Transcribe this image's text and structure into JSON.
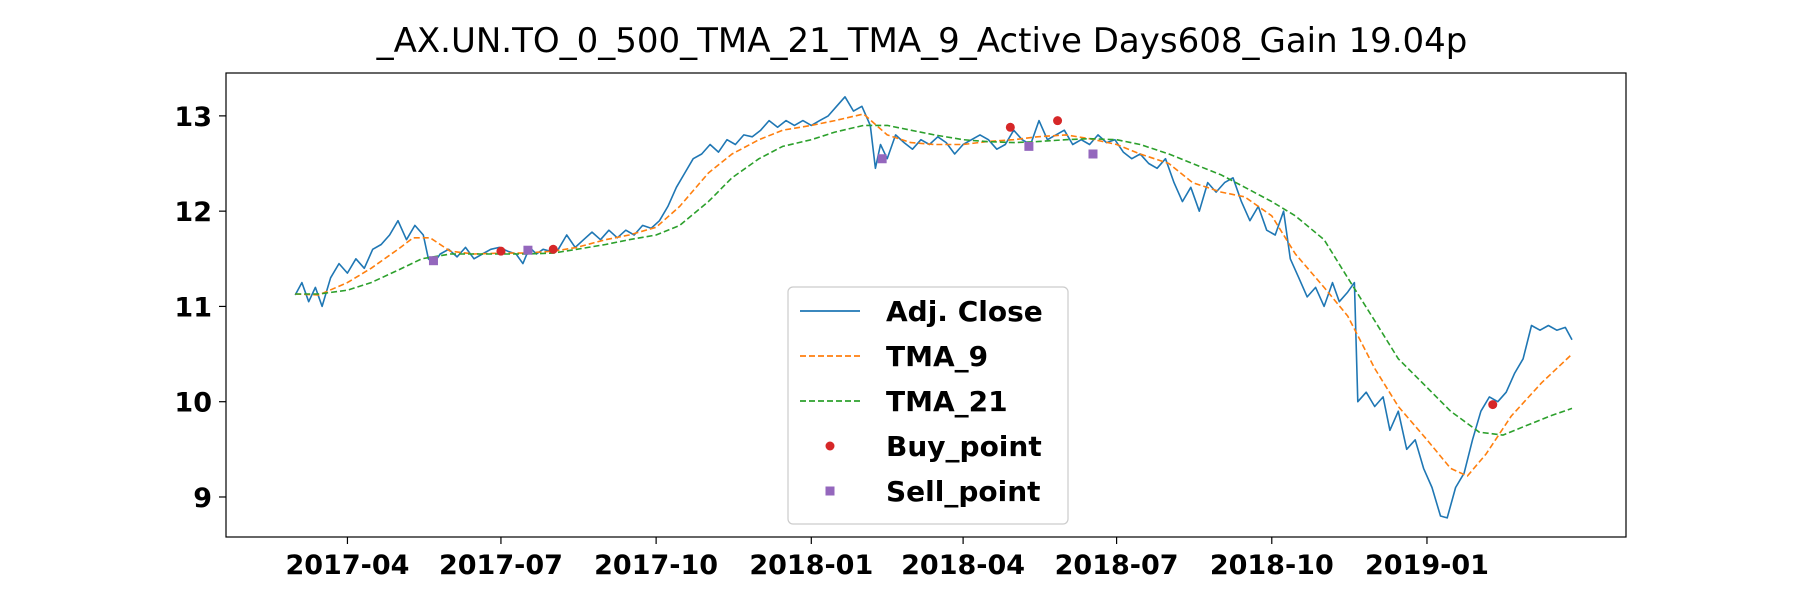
{
  "chart_data": {
    "type": "line",
    "title": "_AX.UN.TO_0_500_TMA_21_TMA_9_Active Days608_Gain  19.04p",
    "xlabel": "",
    "ylabel": "",
    "xlim": [
      "2017-01-19",
      "2019-04-29"
    ],
    "ylim": [
      8.58,
      13.45
    ],
    "x_ticks": [
      "2017-04",
      "2017-07",
      "2017-10",
      "2018-01",
      "2018-04",
      "2018-07",
      "2018-10",
      "2019-01"
    ],
    "y_ticks": [
      9,
      10,
      11,
      12,
      13
    ],
    "grid": false,
    "legend_position": "lower-center",
    "colors": {
      "adj_close": "#1f77b4",
      "tma_9": "#ff7f0e",
      "tma_21": "#2ca02c",
      "buy": "#d62728",
      "sell": "#9467bd"
    },
    "series": [
      {
        "name": "Adj. Close",
        "style": "solid",
        "points": [
          [
            "2017-03-01",
            11.12
          ],
          [
            "2017-03-05",
            11.25
          ],
          [
            "2017-03-09",
            11.05
          ],
          [
            "2017-03-13",
            11.2
          ],
          [
            "2017-03-17",
            11.0
          ],
          [
            "2017-03-22",
            11.3
          ],
          [
            "2017-03-27",
            11.45
          ],
          [
            "2017-04-01",
            11.35
          ],
          [
            "2017-04-06",
            11.5
          ],
          [
            "2017-04-11",
            11.4
          ],
          [
            "2017-04-16",
            11.6
          ],
          [
            "2017-04-21",
            11.65
          ],
          [
            "2017-04-26",
            11.75
          ],
          [
            "2017-05-01",
            11.9
          ],
          [
            "2017-05-06",
            11.7
          ],
          [
            "2017-05-11",
            11.85
          ],
          [
            "2017-05-16",
            11.75
          ],
          [
            "2017-05-19",
            11.5
          ],
          [
            "2017-05-22",
            11.45
          ],
          [
            "2017-05-26",
            11.55
          ],
          [
            "2017-05-31",
            11.6
          ],
          [
            "2017-06-05",
            11.52
          ],
          [
            "2017-06-10",
            11.62
          ],
          [
            "2017-06-15",
            11.5
          ],
          [
            "2017-06-20",
            11.55
          ],
          [
            "2017-06-25",
            11.6
          ],
          [
            "2017-06-30",
            11.62
          ],
          [
            "2017-07-05",
            11.58
          ],
          [
            "2017-07-10",
            11.55
          ],
          [
            "2017-07-14",
            11.45
          ],
          [
            "2017-07-18",
            11.62
          ],
          [
            "2017-07-22",
            11.55
          ],
          [
            "2017-07-26",
            11.6
          ],
          [
            "2017-07-30",
            11.58
          ],
          [
            "2017-08-04",
            11.6
          ],
          [
            "2017-08-09",
            11.75
          ],
          [
            "2017-08-14",
            11.62
          ],
          [
            "2017-08-19",
            11.7
          ],
          [
            "2017-08-24",
            11.78
          ],
          [
            "2017-08-29",
            11.7
          ],
          [
            "2017-09-03",
            11.8
          ],
          [
            "2017-09-08",
            11.72
          ],
          [
            "2017-09-13",
            11.8
          ],
          [
            "2017-09-18",
            11.75
          ],
          [
            "2017-09-23",
            11.85
          ],
          [
            "2017-09-28",
            11.82
          ],
          [
            "2017-10-03",
            11.9
          ],
          [
            "2017-10-08",
            12.05
          ],
          [
            "2017-10-13",
            12.25
          ],
          [
            "2017-10-18",
            12.4
          ],
          [
            "2017-10-23",
            12.55
          ],
          [
            "2017-10-28",
            12.6
          ],
          [
            "2017-11-02",
            12.7
          ],
          [
            "2017-11-07",
            12.62
          ],
          [
            "2017-11-12",
            12.75
          ],
          [
            "2017-11-17",
            12.7
          ],
          [
            "2017-11-22",
            12.8
          ],
          [
            "2017-11-27",
            12.78
          ],
          [
            "2017-12-02",
            12.85
          ],
          [
            "2017-12-07",
            12.95
          ],
          [
            "2017-12-12",
            12.88
          ],
          [
            "2017-12-17",
            12.95
          ],
          [
            "2017-12-22",
            12.9
          ],
          [
            "2017-12-27",
            12.95
          ],
          [
            "2018-01-01",
            12.9
          ],
          [
            "2018-01-06",
            12.95
          ],
          [
            "2018-01-11",
            13.0
          ],
          [
            "2018-01-16",
            13.1
          ],
          [
            "2018-01-21",
            13.2
          ],
          [
            "2018-01-26",
            13.05
          ],
          [
            "2018-01-31",
            13.1
          ],
          [
            "2018-02-05",
            12.9
          ],
          [
            "2018-02-08",
            12.45
          ],
          [
            "2018-02-11",
            12.7
          ],
          [
            "2018-02-15",
            12.55
          ],
          [
            "2018-02-20",
            12.8
          ],
          [
            "2018-02-25",
            12.72
          ],
          [
            "2018-03-02",
            12.65
          ],
          [
            "2018-03-07",
            12.75
          ],
          [
            "2018-03-12",
            12.7
          ],
          [
            "2018-03-17",
            12.78
          ],
          [
            "2018-03-22",
            12.72
          ],
          [
            "2018-03-27",
            12.6
          ],
          [
            "2018-04-01",
            12.7
          ],
          [
            "2018-04-06",
            12.75
          ],
          [
            "2018-04-11",
            12.8
          ],
          [
            "2018-04-16",
            12.75
          ],
          [
            "2018-04-21",
            12.65
          ],
          [
            "2018-04-26",
            12.7
          ],
          [
            "2018-05-01",
            12.85
          ],
          [
            "2018-05-06",
            12.75
          ],
          [
            "2018-05-11",
            12.7
          ],
          [
            "2018-05-16",
            12.95
          ],
          [
            "2018-05-21",
            12.75
          ],
          [
            "2018-05-26",
            12.8
          ],
          [
            "2018-05-31",
            12.85
          ],
          [
            "2018-06-05",
            12.7
          ],
          [
            "2018-06-10",
            12.75
          ],
          [
            "2018-06-15",
            12.7
          ],
          [
            "2018-06-20",
            12.8
          ],
          [
            "2018-06-25",
            12.72
          ],
          [
            "2018-06-30",
            12.75
          ],
          [
            "2018-07-05",
            12.62
          ],
          [
            "2018-07-10",
            12.55
          ],
          [
            "2018-07-15",
            12.6
          ],
          [
            "2018-07-20",
            12.5
          ],
          [
            "2018-07-25",
            12.45
          ],
          [
            "2018-07-30",
            12.55
          ],
          [
            "2018-08-04",
            12.3
          ],
          [
            "2018-08-09",
            12.1
          ],
          [
            "2018-08-14",
            12.25
          ],
          [
            "2018-08-19",
            12.0
          ],
          [
            "2018-08-24",
            12.3
          ],
          [
            "2018-08-29",
            12.2
          ],
          [
            "2018-09-03",
            12.3
          ],
          [
            "2018-09-08",
            12.35
          ],
          [
            "2018-09-13",
            12.1
          ],
          [
            "2018-09-18",
            11.9
          ],
          [
            "2018-09-23",
            12.05
          ],
          [
            "2018-09-28",
            11.8
          ],
          [
            "2018-10-03",
            11.75
          ],
          [
            "2018-10-08",
            12.0
          ],
          [
            "2018-10-12",
            11.5
          ],
          [
            "2018-10-17",
            11.3
          ],
          [
            "2018-10-22",
            11.1
          ],
          [
            "2018-10-27",
            11.2
          ],
          [
            "2018-11-01",
            11.0
          ],
          [
            "2018-11-06",
            11.25
          ],
          [
            "2018-11-10",
            11.05
          ],
          [
            "2018-11-15",
            11.15
          ],
          [
            "2018-11-19",
            11.25
          ],
          [
            "2018-11-21",
            10.0
          ],
          [
            "2018-11-26",
            10.1
          ],
          [
            "2018-12-01",
            9.95
          ],
          [
            "2018-12-06",
            10.05
          ],
          [
            "2018-12-10",
            9.7
          ],
          [
            "2018-12-15",
            9.9
          ],
          [
            "2018-12-20",
            9.5
          ],
          [
            "2018-12-25",
            9.6
          ],
          [
            "2018-12-30",
            9.3
          ],
          [
            "2019-01-04",
            9.1
          ],
          [
            "2019-01-09",
            8.8
          ],
          [
            "2019-01-13",
            8.78
          ],
          [
            "2019-01-18",
            9.1
          ],
          [
            "2019-01-23",
            9.25
          ],
          [
            "2019-01-28",
            9.6
          ],
          [
            "2019-02-02",
            9.9
          ],
          [
            "2019-02-07",
            10.05
          ],
          [
            "2019-02-12",
            10.0
          ],
          [
            "2019-02-17",
            10.1
          ],
          [
            "2019-02-22",
            10.3
          ],
          [
            "2019-02-27",
            10.45
          ],
          [
            "2019-03-04",
            10.8
          ],
          [
            "2019-03-09",
            10.75
          ],
          [
            "2019-03-14",
            10.8
          ],
          [
            "2019-03-19",
            10.75
          ],
          [
            "2019-03-24",
            10.78
          ],
          [
            "2019-03-28",
            10.65
          ]
        ]
      },
      {
        "name": "TMA_9",
        "style": "dashed",
        "points": [
          [
            "2017-03-01",
            11.13
          ],
          [
            "2017-03-15",
            11.12
          ],
          [
            "2017-04-01",
            11.25
          ],
          [
            "2017-04-15",
            11.4
          ],
          [
            "2017-05-01",
            11.6
          ],
          [
            "2017-05-10",
            11.72
          ],
          [
            "2017-05-20",
            11.72
          ],
          [
            "2017-06-01",
            11.58
          ],
          [
            "2017-06-15",
            11.55
          ],
          [
            "2017-07-01",
            11.56
          ],
          [
            "2017-07-15",
            11.56
          ],
          [
            "2017-08-01",
            11.58
          ],
          [
            "2017-08-15",
            11.62
          ],
          [
            "2017-09-01",
            11.7
          ],
          [
            "2017-09-15",
            11.75
          ],
          [
            "2017-10-01",
            11.83
          ],
          [
            "2017-10-15",
            12.05
          ],
          [
            "2017-11-01",
            12.4
          ],
          [
            "2017-11-15",
            12.6
          ],
          [
            "2017-12-01",
            12.75
          ],
          [
            "2017-12-15",
            12.85
          ],
          [
            "2018-01-01",
            12.9
          ],
          [
            "2018-01-15",
            12.95
          ],
          [
            "2018-02-01",
            13.02
          ],
          [
            "2018-02-15",
            12.8
          ],
          [
            "2018-03-01",
            12.72
          ],
          [
            "2018-03-15",
            12.7
          ],
          [
            "2018-04-01",
            12.7
          ],
          [
            "2018-04-15",
            12.73
          ],
          [
            "2018-05-01",
            12.75
          ],
          [
            "2018-05-15",
            12.78
          ],
          [
            "2018-06-01",
            12.8
          ],
          [
            "2018-06-15",
            12.76
          ],
          [
            "2018-07-01",
            12.7
          ],
          [
            "2018-07-15",
            12.6
          ],
          [
            "2018-08-01",
            12.5
          ],
          [
            "2018-08-15",
            12.3
          ],
          [
            "2018-09-01",
            12.2
          ],
          [
            "2018-09-15",
            12.15
          ],
          [
            "2018-10-01",
            11.95
          ],
          [
            "2018-10-15",
            11.55
          ],
          [
            "2018-11-01",
            11.2
          ],
          [
            "2018-11-15",
            10.9
          ],
          [
            "2018-12-01",
            10.35
          ],
          [
            "2018-12-15",
            9.95
          ],
          [
            "2019-01-01",
            9.6
          ],
          [
            "2019-01-15",
            9.3
          ],
          [
            "2019-01-25",
            9.22
          ],
          [
            "2019-02-05",
            9.45
          ],
          [
            "2019-02-20",
            9.85
          ],
          [
            "2019-03-10",
            10.2
          ],
          [
            "2019-03-28",
            10.5
          ]
        ]
      },
      {
        "name": "TMA_21",
        "style": "dashed",
        "points": [
          [
            "2017-03-01",
            11.13
          ],
          [
            "2017-03-15",
            11.13
          ],
          [
            "2017-04-01",
            11.17
          ],
          [
            "2017-04-15",
            11.25
          ],
          [
            "2017-05-01",
            11.38
          ],
          [
            "2017-05-15",
            11.5
          ],
          [
            "2017-06-01",
            11.55
          ],
          [
            "2017-06-15",
            11.55
          ],
          [
            "2017-07-01",
            11.55
          ],
          [
            "2017-07-15",
            11.55
          ],
          [
            "2017-08-01",
            11.56
          ],
          [
            "2017-08-15",
            11.6
          ],
          [
            "2017-09-01",
            11.65
          ],
          [
            "2017-09-15",
            11.7
          ],
          [
            "2017-10-01",
            11.75
          ],
          [
            "2017-10-15",
            11.85
          ],
          [
            "2017-11-01",
            12.1
          ],
          [
            "2017-11-15",
            12.35
          ],
          [
            "2017-12-01",
            12.55
          ],
          [
            "2017-12-15",
            12.68
          ],
          [
            "2018-01-01",
            12.75
          ],
          [
            "2018-01-15",
            12.83
          ],
          [
            "2018-02-01",
            12.9
          ],
          [
            "2018-02-15",
            12.9
          ],
          [
            "2018-03-01",
            12.85
          ],
          [
            "2018-03-15",
            12.8
          ],
          [
            "2018-04-01",
            12.75
          ],
          [
            "2018-04-15",
            12.73
          ],
          [
            "2018-05-01",
            12.72
          ],
          [
            "2018-05-15",
            12.73
          ],
          [
            "2018-06-01",
            12.75
          ],
          [
            "2018-06-15",
            12.76
          ],
          [
            "2018-07-01",
            12.75
          ],
          [
            "2018-07-15",
            12.7
          ],
          [
            "2018-08-01",
            12.6
          ],
          [
            "2018-08-15",
            12.5
          ],
          [
            "2018-09-01",
            12.38
          ],
          [
            "2018-09-15",
            12.25
          ],
          [
            "2018-10-01",
            12.1
          ],
          [
            "2018-10-15",
            11.95
          ],
          [
            "2018-11-01",
            11.7
          ],
          [
            "2018-11-15",
            11.3
          ],
          [
            "2018-12-01",
            10.85
          ],
          [
            "2018-12-15",
            10.45
          ],
          [
            "2019-01-01",
            10.15
          ],
          [
            "2019-01-15",
            9.9
          ],
          [
            "2019-02-01",
            9.68
          ],
          [
            "2019-02-15",
            9.65
          ],
          [
            "2019-03-01",
            9.75
          ],
          [
            "2019-03-15",
            9.85
          ],
          [
            "2019-03-28",
            9.93
          ]
        ]
      }
    ],
    "markers": [
      {
        "name": "Buy_point",
        "shape": "circle",
        "points": [
          [
            "2017-07-01",
            11.58
          ],
          [
            "2017-08-01",
            11.6
          ],
          [
            "2018-04-29",
            12.88
          ],
          [
            "2018-05-27",
            12.95
          ],
          [
            "2019-02-09",
            9.97
          ]
        ]
      },
      {
        "name": "Sell_point",
        "shape": "square",
        "points": [
          [
            "2017-05-22",
            11.48
          ],
          [
            "2017-07-17",
            11.59
          ],
          [
            "2018-02-12",
            12.55
          ],
          [
            "2018-05-10",
            12.68
          ],
          [
            "2018-06-17",
            12.6
          ]
        ]
      }
    ]
  }
}
